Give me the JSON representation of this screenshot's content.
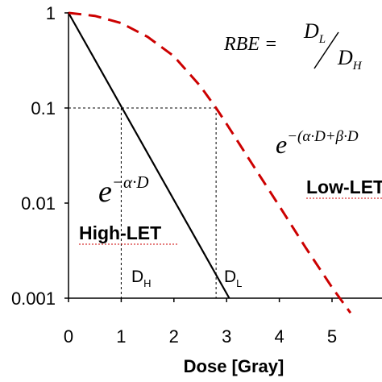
{
  "chart_data": {
    "type": "line",
    "xlabel": "Dose [Gray]",
    "ylabel": "",
    "xlim": [
      0,
      5.5
    ],
    "ylim": [
      0.001,
      1
    ],
    "yscale": "log",
    "x_ticks": [
      "0",
      "1",
      "2",
      "3",
      "4",
      "5"
    ],
    "y_ticks": [
      "1",
      "0.1",
      "0.01",
      "0.001"
    ],
    "grid": false,
    "series": [
      {
        "name": "High-LET",
        "color": "#000000",
        "style": "solid",
        "x": [
          0,
          3.05
        ],
        "y": [
          1,
          0.001
        ]
      },
      {
        "name": "Low-LET",
        "color": "#cc0000",
        "style": "dashed",
        "x": [
          0,
          0.5,
          1.0,
          1.5,
          2.0,
          2.5,
          2.8,
          3.0,
          3.5,
          4.0,
          4.5,
          5.0,
          5.35
        ],
        "y": [
          1,
          0.93,
          0.78,
          0.56,
          0.35,
          0.17,
          0.1,
          0.068,
          0.025,
          0.0093,
          0.0034,
          0.0013,
          0.0007
        ]
      }
    ],
    "reference_lines": [
      {
        "type": "horizontal",
        "y": 0.1,
        "style": "dashed"
      },
      {
        "type": "vertical",
        "x": 1.0,
        "style": "dashed"
      },
      {
        "type": "vertical",
        "x": 2.8,
        "style": "dashed"
      }
    ],
    "annotations": {
      "high_let": "High-LET",
      "low_let": "Low-LET",
      "d_h": "D",
      "d_h_sub": "H",
      "d_l": "D",
      "d_l_sub": "L",
      "rbe_lhs": "RBE =",
      "rbe_num": "D",
      "rbe_num_sub": "L",
      "rbe_den": "D",
      "rbe_den_sub": "H",
      "exp_high_base": "e",
      "exp_high_exponent": "−α·D",
      "exp_low_base": "e",
      "exp_low_exponent": "−(α·D+β·D"
    }
  }
}
